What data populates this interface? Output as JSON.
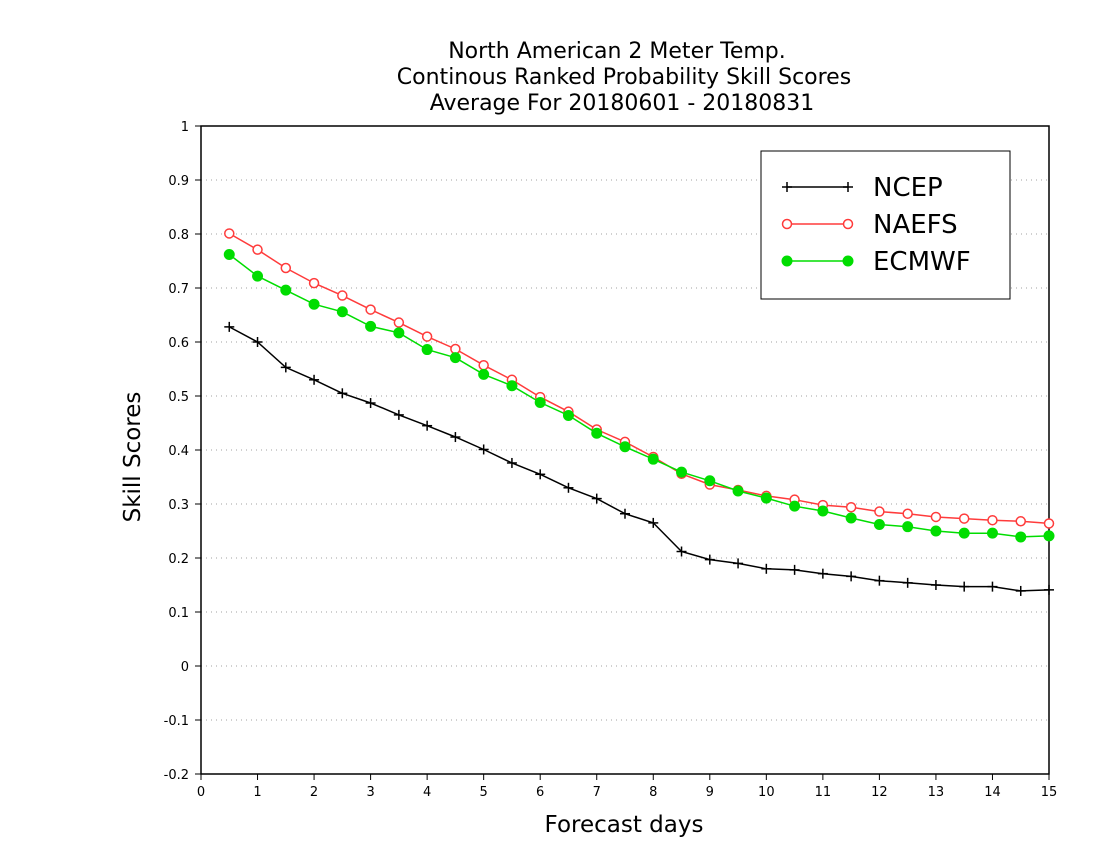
{
  "chart_data": {
    "type": "line",
    "title_lines": [
      "North American 2 Meter Temp.",
      "Continous Ranked Probability Skill Scores",
      "Average For 20180601 - 20180831"
    ],
    "xlabel": "Forecast days",
    "ylabel": "Skill Scores",
    "xlim": [
      0,
      15
    ],
    "ylim": [
      -0.2,
      1
    ],
    "xticks": [
      0,
      1,
      2,
      3,
      4,
      5,
      6,
      7,
      8,
      9,
      10,
      11,
      12,
      13,
      14,
      15
    ],
    "xtick_labels": [
      "0",
      "1",
      "2",
      "3",
      "4",
      "5",
      "6",
      "7",
      "8",
      "9",
      "10",
      "11",
      "12",
      "13",
      "14",
      "15"
    ],
    "yticks": [
      -0.2,
      -0.1,
      0,
      0.1,
      0.2,
      0.3,
      0.4,
      0.5,
      0.6,
      0.7,
      0.8,
      0.9,
      1
    ],
    "ytick_labels": [
      "-0.2",
      "-0.1",
      "0",
      "0.1",
      "0.2",
      "0.3",
      "0.4",
      "0.5",
      "0.6",
      "0.7",
      "0.8",
      "0.9",
      "1"
    ],
    "grid": "horizontal dotted",
    "legend_position": "top-right",
    "x": [
      0.5,
      1,
      1.5,
      2,
      2.5,
      3,
      3.5,
      4,
      4.5,
      5,
      5.5,
      6,
      6.5,
      7,
      7.5,
      8,
      8.5,
      9,
      9.5,
      10,
      10.5,
      11,
      11.5,
      12,
      12.5,
      13,
      13.5,
      14,
      14.5,
      15
    ],
    "series": [
      {
        "name": "NCEP",
        "color": "#000000",
        "marker": "plus",
        "values": [
          0.628,
          0.6,
          0.553,
          0.53,
          0.505,
          0.487,
          0.465,
          0.445,
          0.424,
          0.401,
          0.376,
          0.355,
          0.33,
          0.31,
          0.282,
          0.265,
          0.212,
          0.197,
          0.19,
          0.18,
          0.178,
          0.171,
          0.166,
          0.158,
          0.154,
          0.15,
          0.147,
          0.147,
          0.139,
          0.141
        ]
      },
      {
        "name": "NAEFS",
        "color": "#ff3b3b",
        "marker": "open-circle",
        "values": [
          0.801,
          0.771,
          0.737,
          0.709,
          0.686,
          0.66,
          0.636,
          0.61,
          0.587,
          0.557,
          0.53,
          0.498,
          0.471,
          0.438,
          0.415,
          0.387,
          0.356,
          0.336,
          0.326,
          0.315,
          0.308,
          0.298,
          0.294,
          0.286,
          0.282,
          0.276,
          0.273,
          0.27,
          0.268,
          0.264
        ]
      },
      {
        "name": "ECMWF",
        "color": "#00dd00",
        "marker": "filled-circle",
        "values": [
          0.762,
          0.722,
          0.696,
          0.67,
          0.656,
          0.629,
          0.617,
          0.586,
          0.571,
          0.54,
          0.519,
          0.488,
          0.464,
          0.431,
          0.406,
          0.383,
          0.359,
          0.343,
          0.324,
          0.311,
          0.296,
          0.287,
          0.274,
          0.262,
          0.258,
          0.25,
          0.246,
          0.246,
          0.239,
          0.241
        ]
      }
    ]
  }
}
